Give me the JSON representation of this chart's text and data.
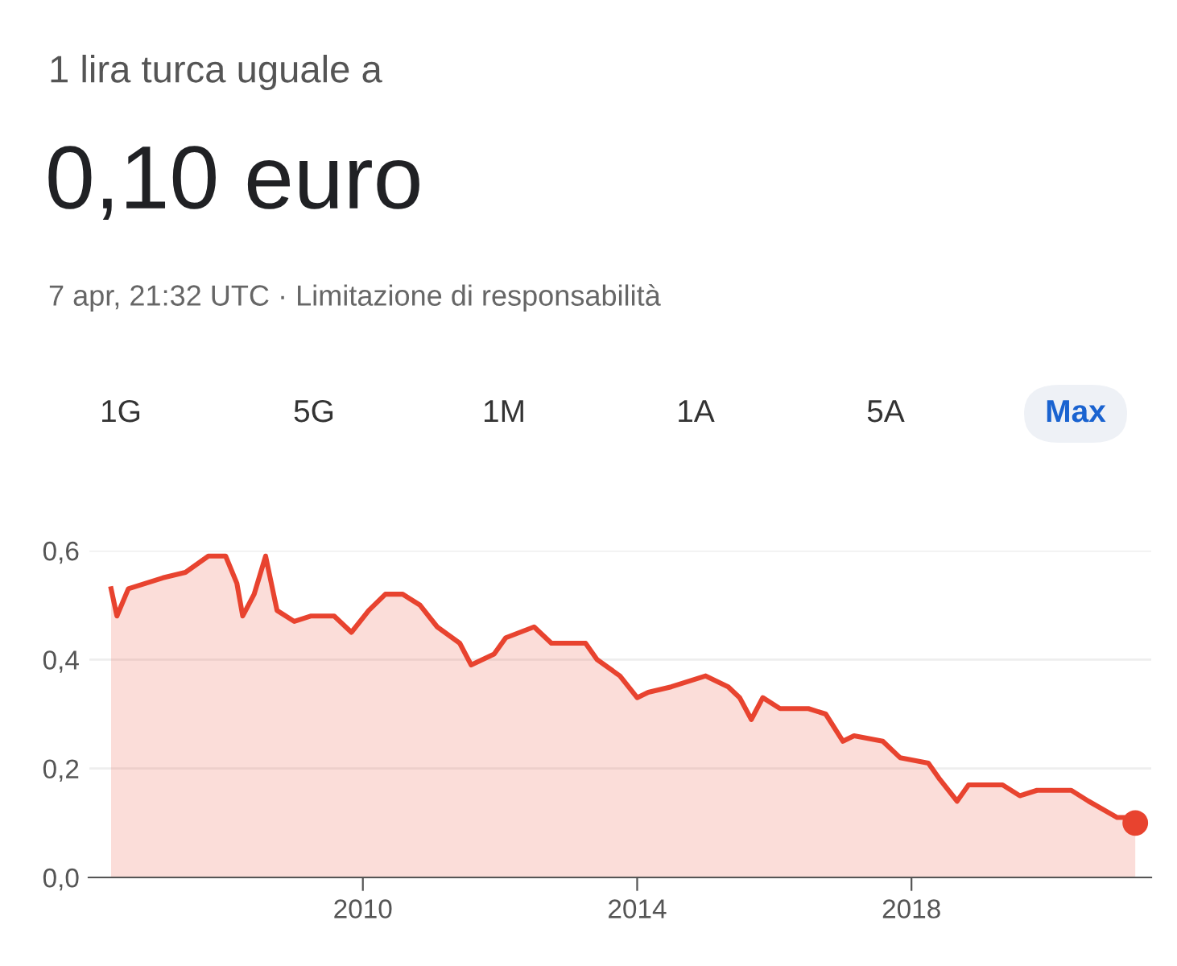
{
  "chart_data": {
    "type": "area",
    "title": "1 lira turca uguale a",
    "subtitle": "0,10 euro",
    "annotations": [
      "7 apr, 21:32 UTC · Limitazione di responsabilità",
      "1G",
      "5G",
      "1M",
      "1A",
      "5A",
      "Max"
    ],
    "series": [
      {
        "color": "#e8432f",
        "x": [
          "2006-05",
          "2006-06",
          "2006-08",
          "2007-02",
          "2007-06",
          "2007-10",
          "2008-01",
          "2008-03",
          "2008-04",
          "2008-06",
          "2008-08",
          "2008-10",
          "2009-01",
          "2009-04",
          "2009-08",
          "2009-11",
          "2010-02",
          "2010-05",
          "2010-08",
          "2010-11",
          "2011-02",
          "2011-06",
          "2011-08",
          "2011-12",
          "2012-02",
          "2012-07",
          "2012-10",
          "2013-04",
          "2013-06",
          "2013-10",
          "2014-01",
          "2014-03",
          "2014-07",
          "2015-01",
          "2015-05",
          "2015-07",
          "2015-09",
          "2015-11",
          "2016-02",
          "2016-07",
          "2016-10",
          "2017-01",
          "2017-03",
          "2017-08",
          "2017-11",
          "2018-04",
          "2018-06",
          "2018-09",
          "2018-11",
          "2019-05",
          "2019-08",
          "2019-11",
          "2020-05",
          "2020-08",
          "2021-01",
          "2021-03",
          "2021-04-07"
        ],
        "values": [
          0.53,
          0.48,
          0.53,
          0.55,
          0.56,
          0.59,
          0.59,
          0.54,
          0.48,
          0.52,
          0.59,
          0.49,
          0.47,
          0.48,
          0.48,
          0.45,
          0.49,
          0.52,
          0.52,
          0.5,
          0.46,
          0.43,
          0.39,
          0.41,
          0.44,
          0.46,
          0.43,
          0.43,
          0.4,
          0.37,
          0.33,
          0.34,
          0.35,
          0.37,
          0.35,
          0.33,
          0.29,
          0.33,
          0.31,
          0.31,
          0.3,
          0.25,
          0.26,
          0.25,
          0.22,
          0.21,
          0.18,
          0.14,
          0.17,
          0.17,
          0.15,
          0.16,
          0.16,
          0.14,
          0.11,
          0.11,
          0.1
        ]
      },
      {
        "type": "scatter",
        "color": "#e8432f",
        "x": [
          "2021-04-07"
        ],
        "values": [
          0.1
        ]
      }
    ],
    "xlim": [
      "2006-01",
      "2021-07"
    ],
    "xticks": [
      "2010",
      "2014",
      "2018"
    ],
    "ylim": [
      0,
      0.6
    ],
    "yticks": [
      {
        "value": 0,
        "label": "0,0"
      },
      {
        "value": 0.2,
        "label": "0,2"
      },
      {
        "value": 0.4,
        "label": "0,4"
      },
      {
        "value": 0.6,
        "label": "0,6"
      }
    ],
    "grid": "y"
  }
}
